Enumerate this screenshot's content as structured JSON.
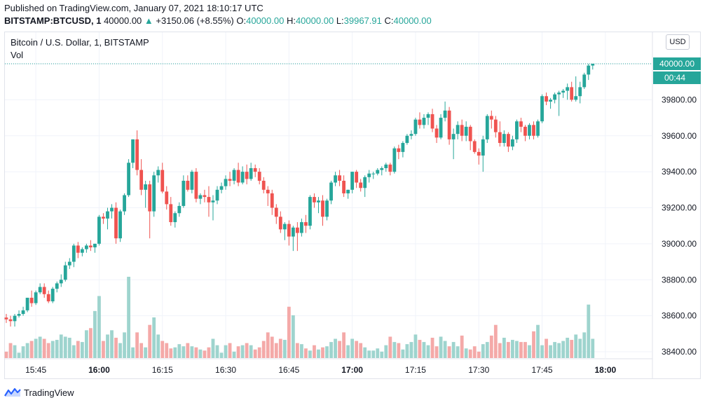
{
  "header": {
    "published": "Published on TradingView.com, January 07, 2021 18:10:17 UTC",
    "symbol": "BITSTAMP:BTCUSD, 1",
    "last": "40000.00",
    "arrow": "▲",
    "change": "+3150.06 (+8.55%)",
    "o_label": "O:",
    "o_value": "40000.00",
    "h_label": "H:",
    "h_value": "40000.00",
    "l_label": "L:",
    "l_value": "39967.91",
    "c_label": "C:",
    "c_value": "40000.00"
  },
  "series_title": "Bitcoin / U.S. Dollar, 1, BITSTAMP",
  "volume_title": "Vol",
  "currency_button": "USD",
  "price_badge": "40000.00",
  "countdown_badge": "00:44",
  "footer": {
    "brand": "TradingView",
    "logo_icon": "tradingview-logo-icon"
  },
  "colors": {
    "up": "#26a69a",
    "down": "#ef5350",
    "up_vol": "#9ed4ce",
    "down_vol": "#f4a9a8",
    "grid": "#f0f3fa",
    "axis_text": "#131722"
  },
  "chart_data": {
    "type": "candlestick",
    "y_axis_side": "right",
    "ylim": [
      38380,
      40060
    ],
    "y_ticks": [
      38400,
      38600,
      38800,
      39000,
      39200,
      39400,
      39600,
      39800,
      40000
    ],
    "y_tick_labels": [
      "38400.00",
      "38600.00",
      "38800.00",
      "39000.00",
      "39200.00",
      "39400.00",
      "39600.00",
      "39800.00",
      "40000.00"
    ],
    "x_start": "15:38",
    "x_ticks": [
      {
        "label": "15:45",
        "minute": 7,
        "bold": false
      },
      {
        "label": "16:00",
        "minute": 22,
        "bold": true
      },
      {
        "label": "16:15",
        "minute": 37,
        "bold": false
      },
      {
        "label": "16:30",
        "minute": 52,
        "bold": false
      },
      {
        "label": "16:45",
        "minute": 67,
        "bold": false
      },
      {
        "label": "17:00",
        "minute": 82,
        "bold": true
      },
      {
        "label": "17:15",
        "minute": 97,
        "bold": false
      },
      {
        "label": "17:30",
        "minute": 112,
        "bold": false
      },
      {
        "label": "17:45",
        "minute": 127,
        "bold": false
      },
      {
        "label": "18:00",
        "minute": 142,
        "bold": true
      }
    ],
    "grid": true,
    "last_price_line": 40000,
    "candles": [
      [
        38590,
        38610,
        38560,
        38580,
        30
      ],
      [
        38580,
        38600,
        38540,
        38570,
        70
      ],
      [
        38570,
        38610,
        38540,
        38600,
        60
      ],
      [
        38600,
        38630,
        38590,
        38610,
        25
      ],
      [
        38610,
        38650,
        38600,
        38630,
        55
      ],
      [
        38630,
        38700,
        38620,
        38700,
        70
      ],
      [
        38700,
        38740,
        38650,
        38670,
        80
      ],
      [
        38670,
        38740,
        38660,
        38730,
        90
      ],
      [
        38730,
        38780,
        38720,
        38760,
        100
      ],
      [
        38760,
        38780,
        38700,
        38720,
        90
      ],
      [
        38720,
        38740,
        38670,
        38680,
        70
      ],
      [
        38680,
        38760,
        38670,
        38750,
        80
      ],
      [
        38750,
        38790,
        38730,
        38780,
        85
      ],
      [
        38780,
        38830,
        38760,
        38800,
        110
      ],
      [
        38800,
        38900,
        38790,
        38880,
        100
      ],
      [
        38880,
        38920,
        38860,
        38900,
        95
      ],
      [
        38900,
        39000,
        38870,
        38990,
        60
      ],
      [
        38990,
        39010,
        38920,
        38950,
        80
      ],
      [
        38950,
        38980,
        38930,
        38970,
        75
      ],
      [
        38970,
        39000,
        38950,
        38990,
        130
      ],
      [
        38990,
        39020,
        38960,
        38980,
        140
      ],
      [
        38980,
        39000,
        38950,
        39000,
        220
      ],
      [
        39000,
        39160,
        38990,
        39150,
        290
      ],
      [
        39150,
        39170,
        39110,
        39140,
        80
      ],
      [
        39140,
        39200,
        39080,
        39180,
        110
      ],
      [
        39180,
        39220,
        39140,
        39200,
        130
      ],
      [
        39200,
        39230,
        39000,
        39030,
        95
      ],
      [
        39030,
        39190,
        39010,
        39180,
        70
      ],
      [
        39180,
        39280,
        39160,
        39270,
        120
      ],
      [
        39270,
        39470,
        39260,
        39450,
        380
      ],
      [
        39450,
        39580,
        39420,
        39580,
        50
      ],
      [
        39580,
        39630,
        39380,
        39410,
        120
      ],
      [
        39410,
        39470,
        39270,
        39300,
        70
      ],
      [
        39300,
        39350,
        39200,
        39330,
        50
      ],
      [
        39330,
        39350,
        39030,
        39180,
        155
      ],
      [
        39180,
        39400,
        39150,
        39380,
        190
      ],
      [
        39380,
        39430,
        39340,
        39410,
        110
      ],
      [
        39410,
        39450,
        39280,
        39290,
        80
      ],
      [
        39290,
        39320,
        39190,
        39220,
        70
      ],
      [
        39220,
        39260,
        39100,
        39120,
        45
      ],
      [
        39120,
        39180,
        39090,
        39170,
        50
      ],
      [
        39170,
        39230,
        39150,
        39210,
        65
      ],
      [
        39210,
        39380,
        39200,
        39350,
        55
      ],
      [
        39350,
        39380,
        39290,
        39300,
        70
      ],
      [
        39300,
        39410,
        39280,
        39400,
        55
      ],
      [
        39400,
        39420,
        39230,
        39250,
        50
      ],
      [
        39250,
        39280,
        39220,
        39270,
        40
      ],
      [
        39270,
        39300,
        39230,
        39260,
        35
      ],
      [
        39260,
        39320,
        39150,
        39230,
        50
      ],
      [
        39230,
        39270,
        39130,
        39240,
        90
      ],
      [
        39240,
        39320,
        39220,
        39300,
        60
      ],
      [
        39300,
        39340,
        39280,
        39320,
        25
      ],
      [
        39320,
        39380,
        39300,
        39360,
        60
      ],
      [
        39360,
        39400,
        39320,
        39350,
        70
      ],
      [
        39350,
        39420,
        39330,
        39410,
        30
      ],
      [
        39410,
        39450,
        39320,
        39340,
        55
      ],
      [
        39340,
        39430,
        39330,
        39400,
        60
      ],
      [
        39400,
        39440,
        39330,
        39360,
        70
      ],
      [
        39360,
        39450,
        39350,
        39420,
        60
      ],
      [
        39420,
        39440,
        39370,
        39400,
        40
      ],
      [
        39400,
        39420,
        39330,
        39350,
        50
      ],
      [
        39350,
        39370,
        39280,
        39300,
        80
      ],
      [
        39300,
        39320,
        39210,
        39280,
        120
      ],
      [
        39280,
        39300,
        39160,
        39200,
        100
      ],
      [
        39200,
        39220,
        39110,
        39150,
        70
      ],
      [
        39150,
        39180,
        39060,
        39080,
        90
      ],
      [
        39080,
        39120,
        39020,
        39110,
        85
      ],
      [
        39110,
        39130,
        38990,
        39040,
        240
      ],
      [
        39040,
        39100,
        38960,
        39090,
        200
      ],
      [
        39090,
        39120,
        38960,
        39060,
        70
      ],
      [
        39060,
        39140,
        39040,
        39120,
        65
      ],
      [
        39120,
        39160,
        39060,
        39100,
        45
      ],
      [
        39100,
        39270,
        39080,
        39260,
        35
      ],
      [
        39260,
        39280,
        39200,
        39230,
        60
      ],
      [
        39230,
        39260,
        39170,
        39240,
        40
      ],
      [
        39240,
        39270,
        39100,
        39150,
        50
      ],
      [
        39150,
        39250,
        39130,
        39240,
        55
      ],
      [
        39240,
        39350,
        39220,
        39340,
        75
      ],
      [
        39340,
        39400,
        39320,
        39380,
        90
      ],
      [
        39380,
        39410,
        39320,
        39350,
        80
      ],
      [
        39350,
        39380,
        39260,
        39280,
        120
      ],
      [
        39280,
        39300,
        39250,
        39300,
        60
      ],
      [
        39300,
        39400,
        39280,
        39400,
        90
      ],
      [
        39400,
        39410,
        39310,
        39340,
        80
      ],
      [
        39340,
        39360,
        39290,
        39310,
        70
      ],
      [
        39310,
        39380,
        39260,
        39370,
        50
      ],
      [
        39370,
        39410,
        39340,
        39390,
        35
      ],
      [
        39390,
        39400,
        39360,
        39390,
        35
      ],
      [
        39390,
        39420,
        39380,
        39410,
        45
      ],
      [
        39410,
        39430,
        39380,
        39420,
        30
      ],
      [
        39420,
        39450,
        39400,
        39440,
        60
      ],
      [
        39440,
        39450,
        39380,
        39400,
        100
      ],
      [
        39400,
        39540,
        39390,
        39530,
        75
      ],
      [
        39530,
        39550,
        39470,
        39510,
        70
      ],
      [
        39510,
        39570,
        39480,
        39560,
        40
      ],
      [
        39560,
        39610,
        39550,
        39600,
        65
      ],
      [
        39600,
        39630,
        39580,
        39610,
        75
      ],
      [
        39610,
        39700,
        39600,
        39690,
        110
      ],
      [
        39690,
        39730,
        39640,
        39660,
        85
      ],
      [
        39660,
        39720,
        39640,
        39700,
        75
      ],
      [
        39700,
        39730,
        39660,
        39720,
        60
      ],
      [
        39720,
        39750,
        39620,
        39640,
        95
      ],
      [
        39640,
        39660,
        39560,
        39590,
        55
      ],
      [
        39590,
        39720,
        39580,
        39700,
        100
      ],
      [
        39700,
        39790,
        39680,
        39740,
        80
      ],
      [
        39740,
        39760,
        39550,
        39580,
        55
      ],
      [
        39580,
        39640,
        39470,
        39610,
        75
      ],
      [
        39610,
        39680,
        39580,
        39660,
        55
      ],
      [
        39660,
        39690,
        39570,
        39600,
        105
      ],
      [
        39600,
        39680,
        39570,
        39650,
        45
      ],
      [
        39650,
        39660,
        39520,
        39570,
        40
      ],
      [
        39570,
        39580,
        39500,
        39510,
        55
      ],
      [
        39510,
        39530,
        39440,
        39490,
        30
      ],
      [
        39490,
        39600,
        39400,
        39580,
        65
      ],
      [
        39580,
        39720,
        39560,
        39710,
        75
      ],
      [
        39710,
        39740,
        39640,
        39690,
        105
      ],
      [
        39690,
        39710,
        39590,
        39620,
        155
      ],
      [
        39620,
        39680,
        39540,
        39560,
        70
      ],
      [
        39560,
        39630,
        39540,
        39610,
        95
      ],
      [
        39610,
        39620,
        39510,
        39540,
        75
      ],
      [
        39540,
        39600,
        39520,
        39580,
        85
      ],
      [
        39580,
        39690,
        39560,
        39680,
        80
      ],
      [
        39680,
        39700,
        39620,
        39650,
        75
      ],
      [
        39650,
        39660,
        39570,
        39600,
        75
      ],
      [
        39600,
        39670,
        39580,
        39660,
        60
      ],
      [
        39660,
        39680,
        39580,
        39600,
        125
      ],
      [
        39600,
        39690,
        39590,
        39680,
        155
      ],
      [
        39680,
        39830,
        39670,
        39820,
        60
      ],
      [
        39820,
        39840,
        39770,
        39790,
        90
      ],
      [
        39790,
        39810,
        39750,
        39800,
        60
      ],
      [
        39800,
        39840,
        39780,
        39830,
        75
      ],
      [
        39830,
        39850,
        39710,
        39840,
        70
      ],
      [
        39840,
        39860,
        39810,
        39850,
        80
      ],
      [
        39850,
        39890,
        39800,
        39870,
        95
      ],
      [
        39870,
        39900,
        39790,
        39800,
        85
      ],
      [
        39800,
        39930,
        39790,
        39820,
        110
      ],
      [
        39820,
        39900,
        39780,
        39870,
        90
      ],
      [
        39870,
        39950,
        39860,
        39940,
        120
      ],
      [
        39940,
        40000,
        39910,
        39990,
        250
      ],
      [
        39990,
        40000,
        39967.91,
        40000,
        90
      ]
    ]
  }
}
